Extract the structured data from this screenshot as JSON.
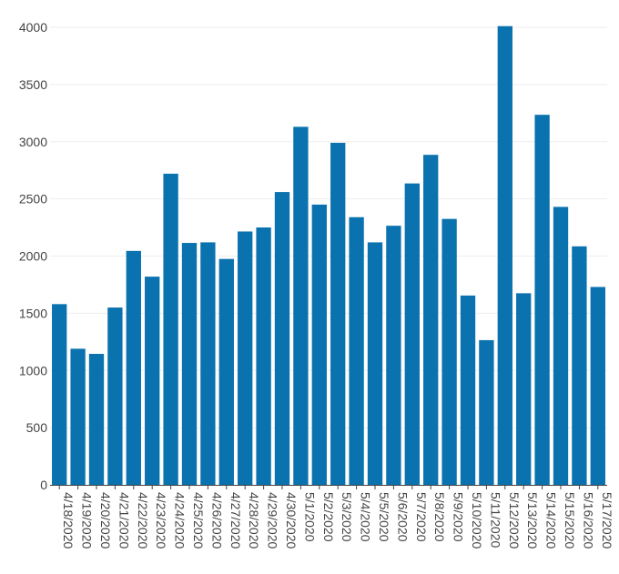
{
  "chart_data": {
    "type": "bar",
    "title": "",
    "xlabel": "",
    "ylabel": "",
    "ylim": [
      0,
      4000
    ],
    "yticks": [
      0,
      500,
      1000,
      1500,
      2000,
      2500,
      3000,
      3500,
      4000
    ],
    "grid": true,
    "bar_color": "#0a72ae",
    "categories": [
      "4/18/2020",
      "4/19/2020",
      "4/20/2020",
      "4/21/2020",
      "4/22/2020",
      "4/23/2020",
      "4/24/2020",
      "4/25/2020",
      "4/26/2020",
      "4/27/2020",
      "4/28/2020",
      "4/29/2020",
      "4/30/2020",
      "5/1/2020",
      "5/2/2020",
      "5/3/2020",
      "5/4/2020",
      "5/5/2020",
      "5/6/2020",
      "5/7/2020",
      "5/8/2020",
      "5/9/2020",
      "5/10/2020",
      "5/11/2020",
      "5/12/2020",
      "5/13/2020",
      "5/14/2020",
      "5/15/2020",
      "5/16/2020",
      "5/17/2020"
    ],
    "values": [
      1580,
      1190,
      1145,
      1550,
      2045,
      1820,
      2720,
      2115,
      2120,
      1975,
      2215,
      2250,
      2560,
      3130,
      2450,
      2990,
      2340,
      2120,
      2265,
      2635,
      2885,
      2325,
      1655,
      1265,
      4010,
      1675,
      3235,
      2430,
      2085,
      1730
    ]
  }
}
